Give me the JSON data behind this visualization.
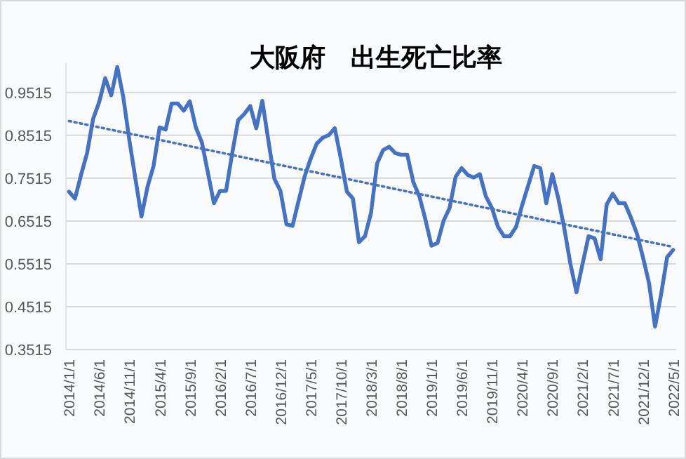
{
  "chart_data": {
    "type": "line",
    "title": "大阪府　出生死亡比率",
    "categories": [
      "2014/1/1",
      null,
      null,
      null,
      null,
      "2014/6/1",
      null,
      null,
      null,
      null,
      "2014/11/1",
      null,
      null,
      null,
      null,
      "2015/4/1",
      null,
      null,
      null,
      null,
      "2015/9/1",
      null,
      null,
      null,
      null,
      "2016/2/1",
      null,
      null,
      null,
      null,
      "2016/7/1",
      null,
      null,
      null,
      null,
      "2016/12/1",
      null,
      null,
      null,
      null,
      "2017/5/1",
      null,
      null,
      null,
      null,
      "2017/10/1",
      null,
      null,
      null,
      null,
      "2018/3/1",
      null,
      null,
      null,
      null,
      "2018/8/1",
      null,
      null,
      null,
      null,
      "2019/1/1",
      null,
      null,
      null,
      null,
      "2019/6/1",
      null,
      null,
      null,
      null,
      "2019/11/1",
      null,
      null,
      null,
      null,
      "2020/4/1",
      null,
      null,
      null,
      null,
      "2020/9/1",
      null,
      null,
      null,
      null,
      "2021/2/1",
      null,
      null,
      null,
      null,
      "2021/7/1",
      null,
      null,
      null,
      null,
      "2021/12/1",
      null,
      null,
      null,
      null,
      "2022/5/1"
    ],
    "series": [
      {
        "color": "#4472c4",
        "line_style": "solid",
        "values": [
          0.72,
          0.704,
          0.759,
          0.81,
          0.89,
          0.929,
          0.985,
          0.945,
          1.011,
          0.94,
          0.84,
          0.75,
          0.662,
          0.731,
          0.78,
          0.87,
          0.865,
          0.926,
          0.926,
          0.909,
          0.931,
          0.87,
          0.835,
          0.764,
          0.693,
          0.722,
          0.722,
          0.808,
          0.887,
          0.901,
          0.92,
          0.868,
          0.932,
          0.84,
          0.75,
          0.722,
          0.644,
          0.64,
          0.698,
          0.755,
          0.797,
          0.832,
          0.846,
          0.852,
          0.868,
          0.797,
          0.72,
          0.704,
          0.602,
          0.616,
          0.671,
          0.786,
          0.817,
          0.825,
          0.81,
          0.806,
          0.806,
          0.742,
          0.709,
          0.655,
          0.594,
          0.6,
          0.652,
          0.682,
          0.755,
          0.775,
          0.759,
          0.753,
          0.761,
          0.709,
          0.682,
          0.638,
          0.616,
          0.616,
          0.638,
          0.688,
          0.734,
          0.78,
          0.775,
          0.693,
          0.761,
          0.704,
          0.633,
          0.551,
          0.485,
          0.551,
          0.616,
          0.611,
          0.562,
          0.69,
          0.715,
          0.693,
          0.693,
          0.66,
          0.622,
          0.567,
          0.507,
          0.405,
          0.48,
          0.567,
          0.584
        ]
      },
      {
        "type": "line",
        "color": "#4472c4",
        "line_style": "dotted",
        "x": [
          "2014/1/1",
          "2022/5/1"
        ],
        "values": [
          0.885,
          0.591
        ]
      }
    ],
    "ylim": [
      0.3515,
      1.02
    ],
    "yticks": [
      0.3515,
      0.4515,
      0.5515,
      0.6515,
      0.7515,
      0.8515,
      0.9515
    ],
    "grid": "y",
    "marker": "none"
  }
}
